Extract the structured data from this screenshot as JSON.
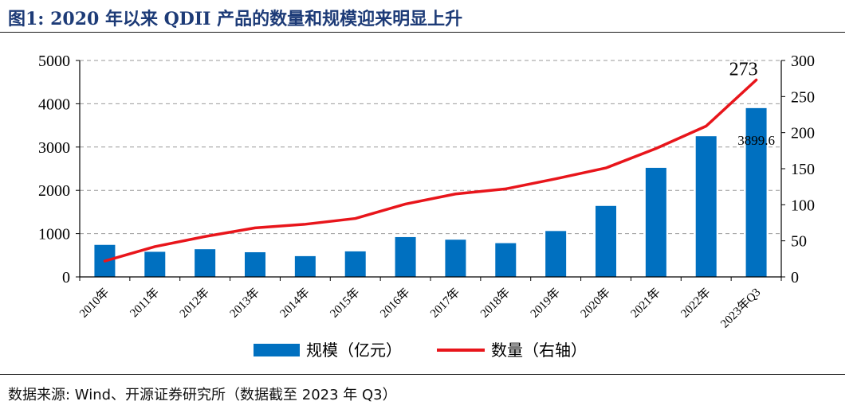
{
  "title": "图1: 2020 年以来 QDII 产品的数量和规模迎来明显上升",
  "source": "数据来源: Wind、开源证券研究所（数据截至 2023 年 Q3）",
  "chart_data": {
    "type": "bar+line",
    "categories": [
      "2010年",
      "2011年",
      "2012年",
      "2013年",
      "2014年",
      "2015年",
      "2016年",
      "2017年",
      "2018年",
      "2019年",
      "2020年",
      "2021年",
      "2022年",
      "2023年Q3"
    ],
    "series": [
      {
        "name": "规模（亿元）",
        "type": "bar",
        "axis": "left",
        "color": "#0070C0",
        "values": [
          740,
          580,
          640,
          570,
          480,
          590,
          920,
          860,
          780,
          1060,
          1640,
          2520,
          3250,
          3899.6
        ]
      },
      {
        "name": "数量（右轴）",
        "type": "line",
        "axis": "right",
        "color": "#E8151B",
        "values": [
          22,
          42,
          56,
          68,
          73,
          81,
          101,
          115,
          122,
          136,
          151,
          178,
          209,
          273
        ]
      }
    ],
    "data_labels": {
      "bar_last": "3899.6",
      "line_last": "273"
    },
    "ylim_left": [
      0,
      5000
    ],
    "yticks_left": [
      0,
      1000,
      2000,
      3000,
      4000,
      5000
    ],
    "ylim_right": [
      0,
      300
    ],
    "yticks_right": [
      0,
      50,
      100,
      150,
      200,
      250,
      300
    ],
    "grid": true,
    "legend_position": "bottom"
  }
}
